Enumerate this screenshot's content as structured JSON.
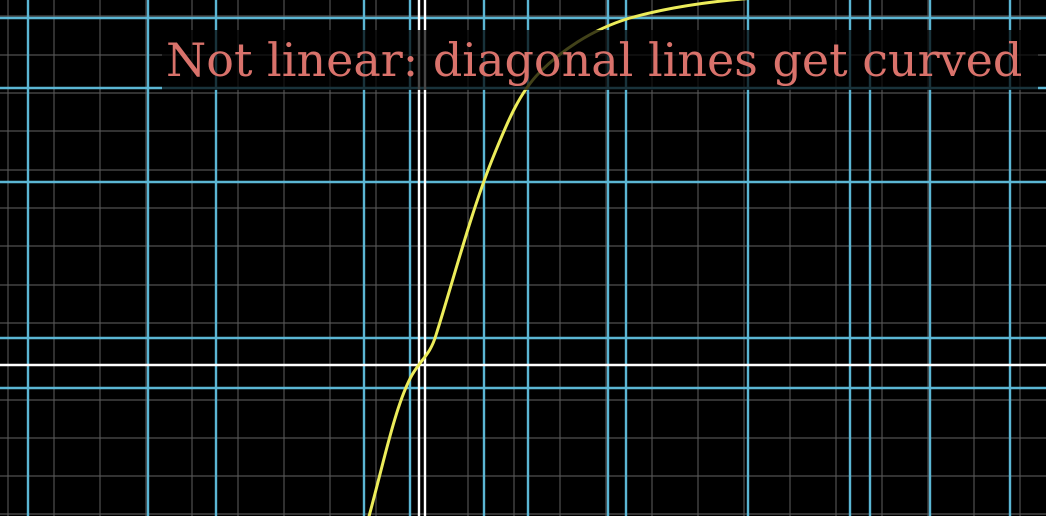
{
  "caption": {
    "text": "Not linear: diagonal lines get curved",
    "color": "#d9726b"
  },
  "colors": {
    "background": "#000000",
    "faint_grid": "#5a5a5a",
    "transformed_grid": "#5bb6d4",
    "axes": "#ffffff",
    "curve": "#ecec5a"
  }
}
